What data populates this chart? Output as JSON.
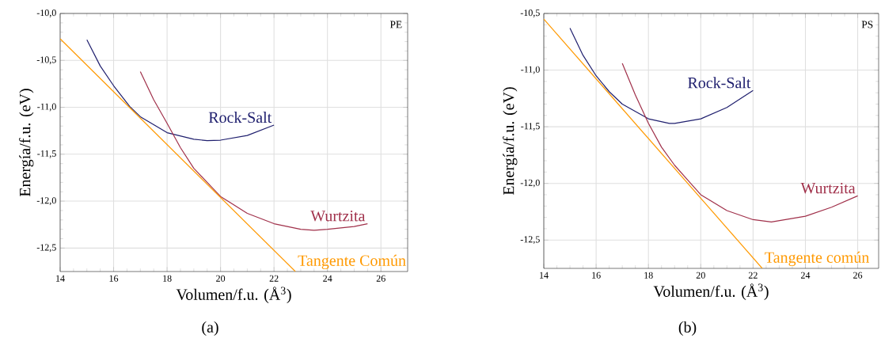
{
  "chart_data": [
    {
      "type": "line",
      "xlabel": "Volumen/f.u. (Å$^{3}$)",
      "ylabel": "Energía/f.u. (eV)",
      "xlim": [
        14,
        27
      ],
      "ylim": [
        -12.75,
        -10.0
      ],
      "xticks": [
        14,
        16,
        18,
        20,
        22,
        24,
        26
      ],
      "yticks": [
        {
          "value": -10.0,
          "label": "-10,0"
        },
        {
          "value": -10.5,
          "label": "-10,5"
        },
        {
          "value": -11.0,
          "label": "-11,0"
        },
        {
          "value": -11.5,
          "label": "-11,5"
        },
        {
          "value": -12.0,
          "label": "-12,0"
        },
        {
          "value": -12.5,
          "label": "-12,5"
        }
      ],
      "grid": true,
      "series": [
        {
          "name": "Rock-Salt",
          "color": "#1f1f6e",
          "x": [
            15.0,
            15.5,
            16.0,
            16.6,
            17.0,
            18.0,
            19.0,
            19.5,
            20.0,
            21.0,
            22.0
          ],
          "values": [
            -10.28,
            -10.56,
            -10.77,
            -10.99,
            -11.1,
            -11.27,
            -11.34,
            -11.355,
            -11.35,
            -11.3,
            -11.19
          ]
        },
        {
          "name": "Wurtzita",
          "color": "#a0304a",
          "x": [
            17.0,
            17.5,
            18.0,
            18.5,
            19.0,
            19.5,
            20.0,
            21.0,
            22.0,
            23.0,
            23.5,
            24.0,
            25.0,
            25.5
          ],
          "values": [
            -10.62,
            -10.92,
            -11.17,
            -11.43,
            -11.65,
            -11.8,
            -11.95,
            -12.13,
            -12.24,
            -12.3,
            -12.31,
            -12.3,
            -12.27,
            -12.24
          ]
        },
        {
          "name": "Tangente Común",
          "color": "#ff9900",
          "x": [
            14.0,
            22.8
          ],
          "values": [
            -10.27,
            -12.75
          ]
        }
      ],
      "annotations": [
        "PE",
        "(a)"
      ]
    },
    {
      "type": "line",
      "xlabel": "Volumen/f.u. (Å$^{3}$)",
      "ylabel": "Energía/f.u. (eV)",
      "xlim": [
        14,
        26.8
      ],
      "ylim": [
        -12.75,
        -10.5
      ],
      "xticks": [
        14,
        16,
        18,
        20,
        22,
        24,
        26
      ],
      "yticks": [
        {
          "value": -10.5,
          "label": "-10,5"
        },
        {
          "value": -11.0,
          "label": "-11,0"
        },
        {
          "value": -11.5,
          "label": "-11,5"
        },
        {
          "value": -12.0,
          "label": "-12,0"
        },
        {
          "value": -12.5,
          "label": "-12,5"
        }
      ],
      "grid": true,
      "series": [
        {
          "name": "Rock-Salt",
          "color": "#1f1f6e",
          "x": [
            15.0,
            15.5,
            16.0,
            16.5,
            17.0,
            18.0,
            18.8,
            19.0,
            20.0,
            21.0,
            22.0
          ],
          "values": [
            -10.63,
            -10.87,
            -11.05,
            -11.19,
            -11.3,
            -11.43,
            -11.47,
            -11.47,
            -11.43,
            -11.33,
            -11.18
          ]
        },
        {
          "name": "Wurtzita",
          "color": "#a0304a",
          "x": [
            17.0,
            17.5,
            18.0,
            18.5,
            19.0,
            19.5,
            20.0,
            21.0,
            22.0,
            22.7,
            24.0,
            25.0,
            26.0
          ],
          "values": [
            -10.94,
            -11.22,
            -11.47,
            -11.68,
            -11.84,
            -11.97,
            -12.1,
            -12.24,
            -12.32,
            -12.34,
            -12.29,
            -12.21,
            -12.11
          ]
        },
        {
          "name": "Tangente común",
          "color": "#ff9900",
          "x": [
            14.0,
            22.35
          ],
          "values": [
            -10.55,
            -12.75
          ]
        }
      ],
      "annotations": [
        "PS",
        "(b)"
      ]
    }
  ]
}
